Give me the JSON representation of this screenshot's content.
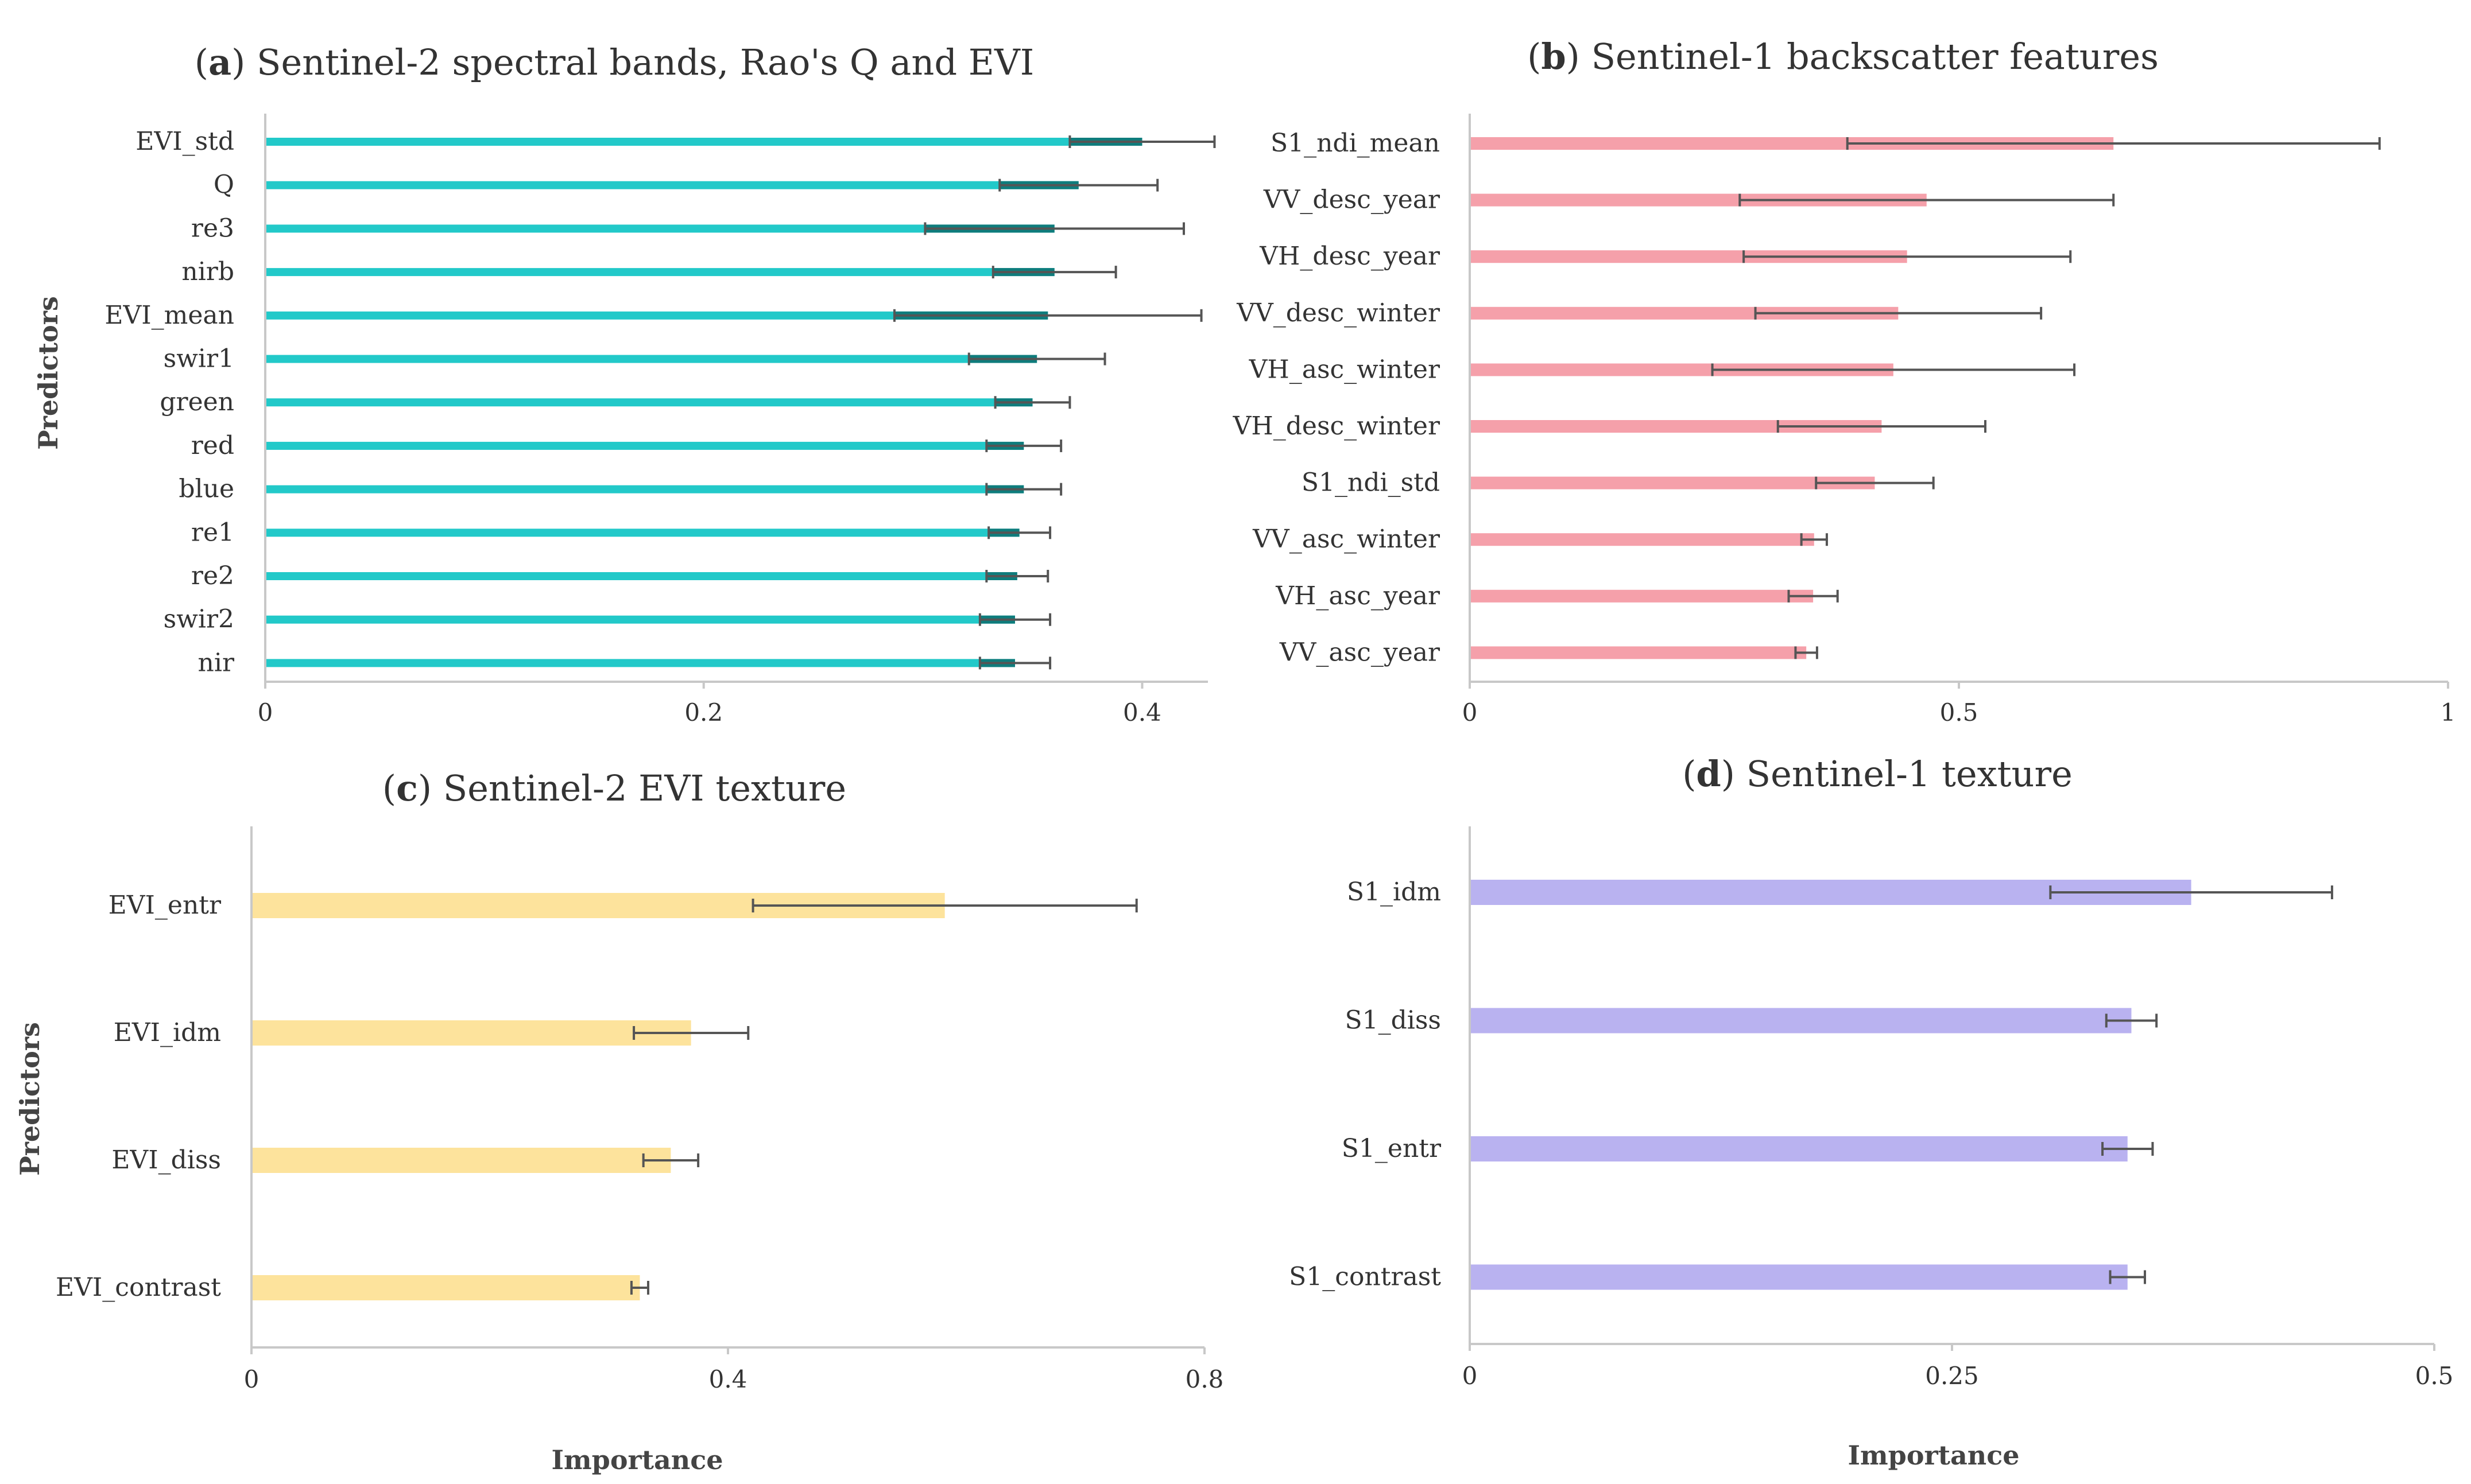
{
  "chart_data": [
    {
      "id": "a",
      "type": "bar",
      "orientation": "horizontal",
      "title_letter": "a",
      "title_text": "Sentinel-2 spectral bands, Rao's Q and EVI",
      "ylabel": "Predictors",
      "xlabel": "",
      "xlim": [
        0,
        0.43
      ],
      "ticks": [
        0,
        0.2,
        0.4
      ],
      "tick_labels": [
        "0",
        "0.2",
        "0.4"
      ],
      "color": "#22c9c9",
      "categories": [
        "EVI_std",
        "Q",
        "re3",
        "nirb",
        "EVI_mean",
        "swir1",
        "green",
        "red",
        "blue",
        "re1",
        "re2",
        "swir2",
        "nir"
      ],
      "values": [
        0.4,
        0.371,
        0.36,
        0.36,
        0.357,
        0.352,
        0.35,
        0.346,
        0.346,
        0.344,
        0.343,
        0.342,
        0.342
      ],
      "errors": [
        0.033,
        0.036,
        0.059,
        0.028,
        0.07,
        0.031,
        0.017,
        0.017,
        0.017,
        0.014,
        0.014,
        0.016,
        0.016
      ]
    },
    {
      "id": "b",
      "type": "bar",
      "orientation": "horizontal",
      "title_letter": "b",
      "title_text": "Sentinel-1 backscatter features",
      "ylabel": "",
      "xlabel": "",
      "xlim": [
        0,
        1
      ],
      "ticks": [
        0,
        0.5,
        1
      ],
      "tick_labels": [
        "0",
        "0.5",
        "1"
      ],
      "color": "#f5a0aa",
      "categories": [
        "S1_ndi_mean",
        "VV_desc_year",
        "VH_desc_year",
        "VV_desc_winter",
        "VH_asc_winter",
        "VH_desc_winter",
        "S1_ndi_std",
        "VV_asc_winter",
        "VH_asc_year",
        "VV_asc_year"
      ],
      "values": [
        0.658,
        0.467,
        0.447,
        0.438,
        0.433,
        0.421,
        0.414,
        0.352,
        0.351,
        0.344
      ],
      "errors": [
        0.272,
        0.191,
        0.167,
        0.146,
        0.185,
        0.106,
        0.06,
        0.013,
        0.025,
        0.011
      ]
    },
    {
      "id": "c",
      "type": "bar",
      "orientation": "horizontal",
      "title_letter": "c",
      "title_text": "Sentinel-2 EVI texture",
      "ylabel": "Predictors",
      "xlabel": "Importance",
      "xlim": [
        0,
        0.8
      ],
      "ticks": [
        0,
        0.4,
        0.8
      ],
      "tick_labels": [
        "0",
        "0.4",
        "0.8"
      ],
      "color": "#fde39c",
      "categories": [
        "EVI_entr",
        "EVI_idm",
        "EVI_diss",
        "EVI_contrast"
      ],
      "values": [
        0.582,
        0.369,
        0.352,
        0.326
      ],
      "errors": [
        0.161,
        0.048,
        0.023,
        0.007
      ]
    },
    {
      "id": "d",
      "type": "bar",
      "orientation": "horizontal",
      "title_letter": "d",
      "title_text": "Sentinel-1 texture",
      "ylabel": "",
      "xlabel": "Importance",
      "xlim": [
        0,
        0.5
      ],
      "ticks": [
        0,
        0.25,
        0.5
      ],
      "tick_labels": [
        "0",
        "0.25",
        "0.5"
      ],
      "color": "#b9b2f0",
      "categories": [
        "S1_idm",
        "S1_diss",
        "S1_entr",
        "S1_contrast"
      ],
      "values": [
        0.374,
        0.343,
        0.341,
        0.341
      ],
      "errors": [
        0.073,
        0.013,
        0.013,
        0.009
      ]
    }
  ]
}
